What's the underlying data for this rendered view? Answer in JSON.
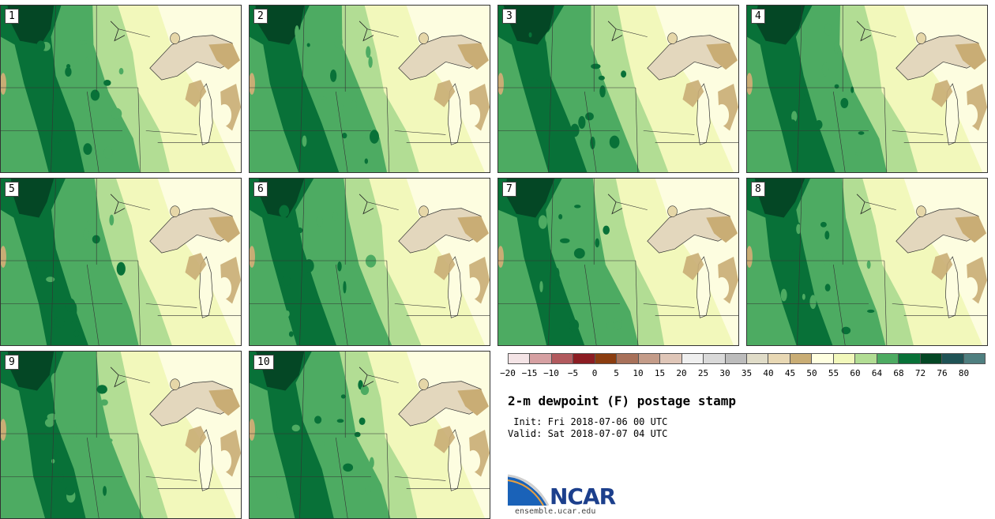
{
  "title": "2-m dewpoint (F) postage stamp",
  "init": " Init: Fri 2018-07-06 00 UTC",
  "valid": "Valid: Sat 2018-07-07 04 UTC",
  "members": [
    "1",
    "2",
    "3",
    "4",
    "5",
    "6",
    "7",
    "8",
    "9",
    "10"
  ],
  "colorbar": {
    "colors": [
      "#f4e4e6",
      "#d6a0a2",
      "#b25a5e",
      "#8c1d23",
      "#8b3d10",
      "#a8715a",
      "#c49c89",
      "#dfc6b8",
      "#efefef",
      "#d9d9d9",
      "#bcbcbc",
      "#e0dcc8",
      "#e8d8b4",
      "#c9ad75",
      "#ffffe0",
      "#f2f8bb",
      "#b2dd94",
      "#4dab62",
      "#087138",
      "#044725",
      "#1f5356",
      "#4f7f80"
    ],
    "ticks": [
      "−20",
      "−15",
      "−10",
      "−5",
      "0",
      "5",
      "10",
      "15",
      "20",
      "25",
      "30",
      "35",
      "40",
      "45",
      "50",
      "55",
      "60",
      "64",
      "68",
      "72",
      "76",
      "80"
    ]
  },
  "logo": {
    "name": "NCAR",
    "site": "ensemble.ucar.edu"
  },
  "map_colors": {
    "bg": "#fdfde0",
    "light": "#f2f8bb",
    "mid": "#b2dd94",
    "green": "#4dab62",
    "dark": "#087138",
    "darkest": "#044725",
    "tan": "#c9ad75",
    "beige": "#e8d8b4",
    "lake": "#e3d7bd"
  }
}
